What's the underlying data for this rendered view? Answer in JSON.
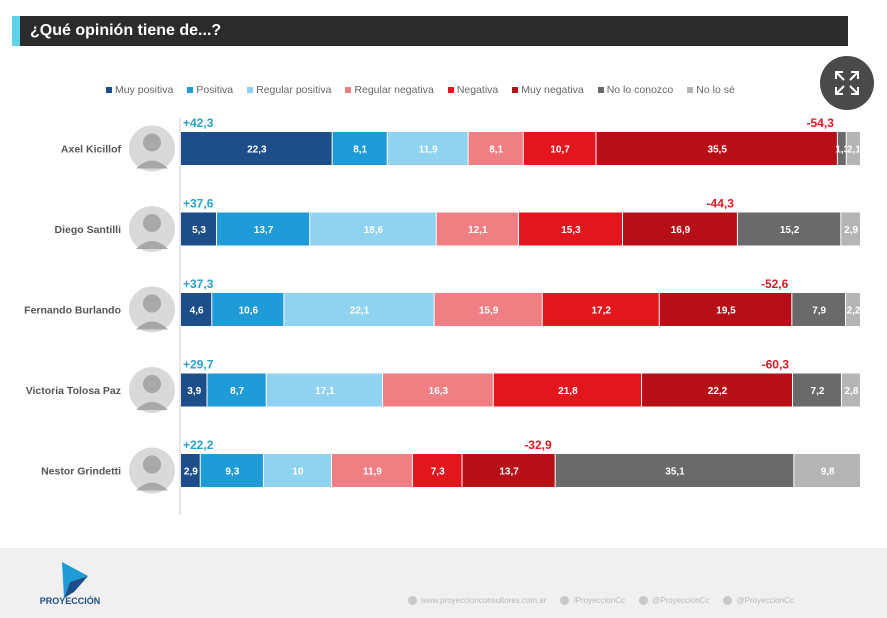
{
  "header": {
    "title": "¿Qué opinión tiene de...?"
  },
  "colors": {
    "muy_positiva": "#1d4e89",
    "positiva": "#1f9bd7",
    "regular_positiva": "#8fd3f0",
    "regular_negativa": "#f07f84",
    "negativa": "#e3151d",
    "muy_negativa": "#b60f18",
    "no_lo_conozco": "#6a6a6a",
    "no_lo_se": "#b5b5b5",
    "positive_net": "#2aa0cf",
    "negative_net": "#d41c24"
  },
  "legend": {
    "items": [
      {
        "label": "Muy positiva",
        "color": "#1d4e89"
      },
      {
        "label": "Positiva",
        "color": "#1f9bd7"
      },
      {
        "label": "Regular positiva",
        "color": "#8fd3f0"
      },
      {
        "label": "Regular negativa",
        "color": "#f07f84"
      },
      {
        "label": "Negativa",
        "color": "#e3151d"
      },
      {
        "label": "Muy negativa",
        "color": "#b60f18"
      },
      {
        "label": "No lo conozco",
        "color": "#6a6a6a"
      },
      {
        "label": "No lo sé",
        "color": "#b5b5b5"
      }
    ]
  },
  "chart_data": {
    "type": "bar",
    "stacked": true,
    "orientation": "horizontal",
    "title": "¿Qué opinión tiene de...?",
    "categories": [
      "Axel Kicillof",
      "Diego Santilli",
      "Fernando Burlando",
      "Victoria Tolosa Paz",
      "Nestor Grindetti"
    ],
    "series": [
      {
        "name": "Muy positiva",
        "values": [
          22.3,
          5.3,
          4.6,
          3.9,
          2.9
        ]
      },
      {
        "name": "Positiva",
        "values": [
          8.1,
          13.7,
          10.6,
          8.7,
          9.3
        ]
      },
      {
        "name": "Regular positiva",
        "values": [
          11.9,
          18.6,
          22.1,
          17.1,
          10
        ]
      },
      {
        "name": "Regular negativa",
        "values": [
          8.1,
          12.1,
          15.9,
          16.3,
          11.9
        ]
      },
      {
        "name": "Negativa",
        "values": [
          10.7,
          15.3,
          17.2,
          21.8,
          7.3
        ]
      },
      {
        "name": "Muy negativa",
        "values": [
          35.5,
          16.9,
          19.5,
          22.2,
          13.7
        ]
      },
      {
        "name": "No lo conozco",
        "values": [
          1.3,
          15.2,
          7.9,
          7.2,
          35.1
        ]
      },
      {
        "name": "No lo sé",
        "values": [
          2.1,
          2.9,
          2.2,
          2.8,
          9.8
        ]
      }
    ],
    "value_labels": [
      [
        "22,3",
        "8,1",
        "11,9",
        "8,1",
        "10,7",
        "35,5",
        "1,3",
        "2,1"
      ],
      [
        "5,3",
        "13,7",
        "18,6",
        "12,1",
        "15,3",
        "16,9",
        "15,2",
        "2,9"
      ],
      [
        "4,6",
        "10,6",
        "22,1",
        "15,9",
        "17,2",
        "19,5",
        "7,9",
        "2,2"
      ],
      [
        "3,9",
        "8,7",
        "17,1",
        "16,3",
        "21,8",
        "22,2",
        "7,2",
        "2,8"
      ],
      [
        "2,9",
        "9,3",
        "10",
        "11,9",
        "7,3",
        "13,7",
        "35,1",
        "9,8"
      ]
    ],
    "positive_totals": [
      "+42,3",
      "+37,6",
      "+37,3",
      "+29,7",
      "+22,2"
    ],
    "negative_totals": [
      "-54,3",
      "-44,3",
      "-52,6",
      "-60,3",
      "-32,9"
    ],
    "xlim": [
      0,
      100
    ],
    "legend_position": "top"
  },
  "footer": {
    "brand": "PROYECCIÓN",
    "links": [
      "www.proyeccionconsultores.com.ar",
      "/ProyeccionCc",
      "@ProyeccionCc",
      "@ProyeccionCc"
    ]
  }
}
